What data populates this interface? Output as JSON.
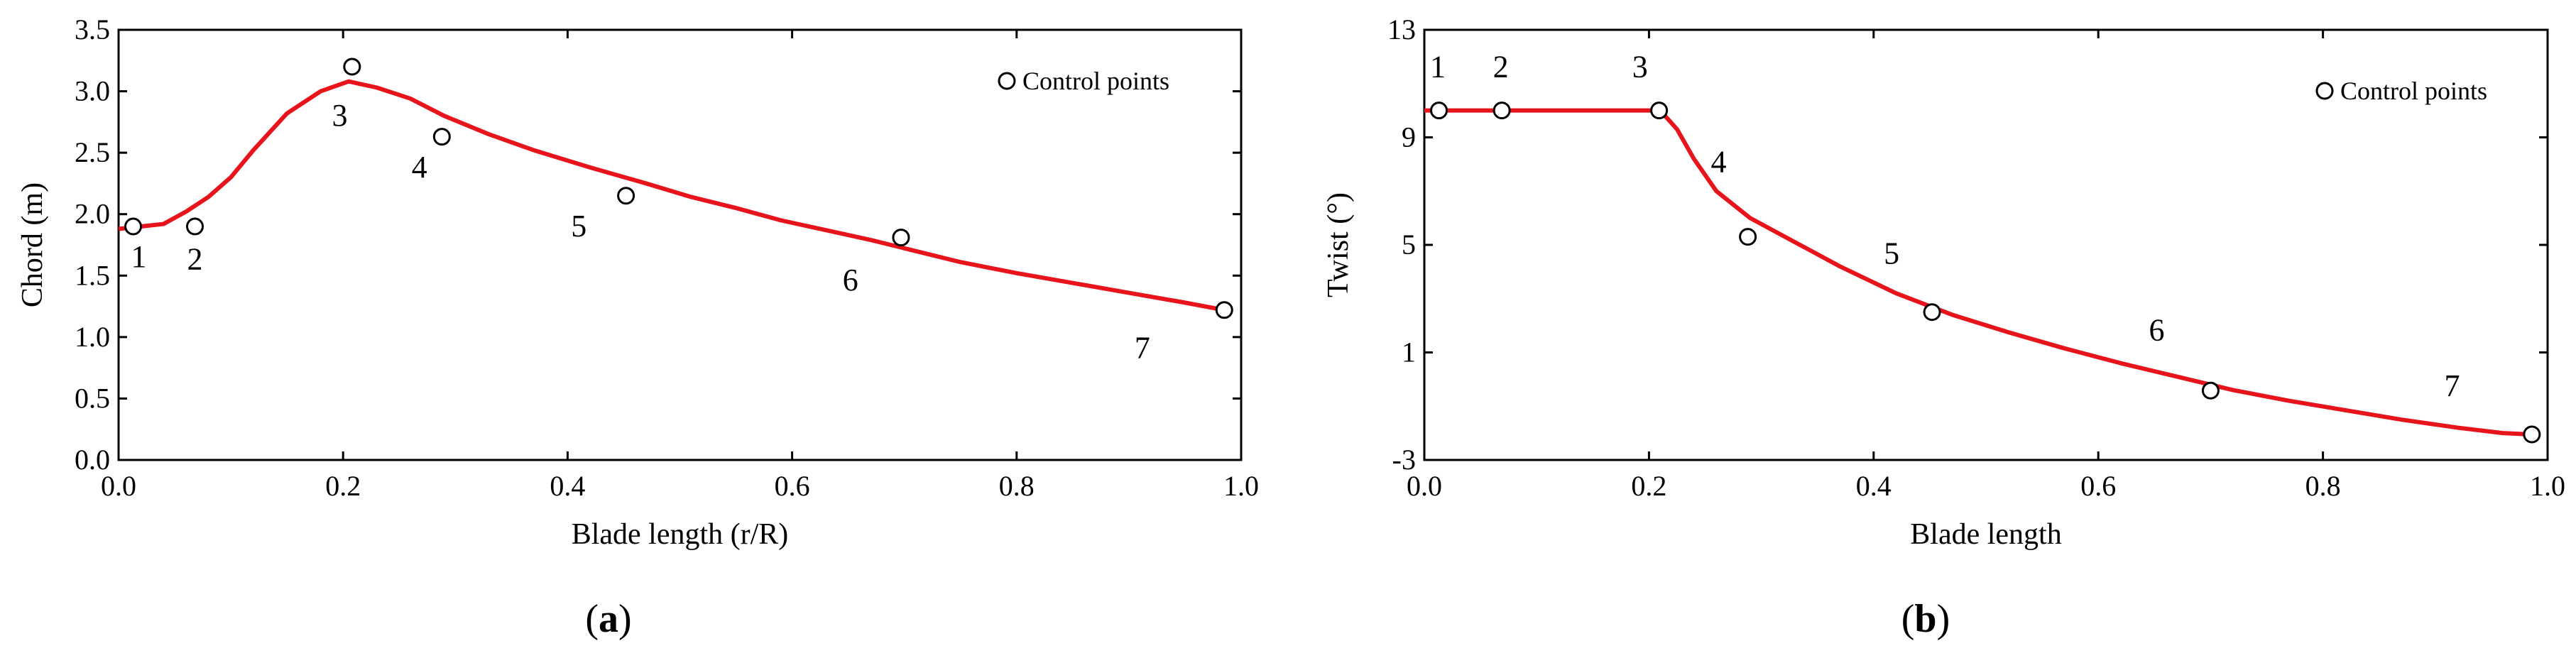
{
  "chart_data": [
    {
      "type": "line",
      "panel_label": {
        "open": "(",
        "letter": "a",
        "close": ")"
      },
      "xlabel": "Blade length (r/R)",
      "ylabel": "Chord (m)",
      "xlim": [
        0.0,
        1.0
      ],
      "ylim": [
        0.0,
        3.5
      ],
      "x_ticks": [
        "0.0",
        "0.2",
        "0.4",
        "0.6",
        "0.8",
        "1.0"
      ],
      "y_ticks": [
        "0.0",
        "0.5",
        "1.0",
        "1.5",
        "2.0",
        "2.5",
        "3.0",
        "3.5"
      ],
      "legend": {
        "label": "Control points",
        "position": "top-right"
      },
      "series": [
        {
          "kind": "curve",
          "color": "#e8141b",
          "x": [
            0.0,
            0.02,
            0.04,
            0.06,
            0.08,
            0.1,
            0.12,
            0.15,
            0.18,
            0.205,
            0.23,
            0.26,
            0.29,
            0.33,
            0.37,
            0.42,
            0.47,
            0.51,
            0.55,
            0.59,
            0.63,
            0.67,
            0.71,
            0.75,
            0.8,
            0.85,
            0.9,
            0.95,
            0.985
          ],
          "y": [
            1.88,
            1.9,
            1.92,
            2.02,
            2.14,
            2.3,
            2.52,
            2.82,
            3.0,
            3.08,
            3.03,
            2.94,
            2.8,
            2.65,
            2.52,
            2.38,
            2.25,
            2.14,
            2.05,
            1.95,
            1.87,
            1.79,
            1.7,
            1.61,
            1.52,
            1.44,
            1.36,
            1.28,
            1.22
          ]
        },
        {
          "kind": "points",
          "x": [
            0.013,
            0.068,
            0.208,
            0.288,
            0.452,
            0.697,
            0.985
          ],
          "y": [
            1.9,
            1.9,
            3.2,
            2.63,
            2.15,
            1.81,
            1.22
          ]
        }
      ],
      "point_labels": [
        {
          "text": "1",
          "x": 0.018,
          "y": 1.57
        },
        {
          "text": "2",
          "x": 0.068,
          "y": 1.55
        },
        {
          "text": "3",
          "x": 0.197,
          "y": 2.72
        },
        {
          "text": "4",
          "x": 0.268,
          "y": 2.3
        },
        {
          "text": "5",
          "x": 0.41,
          "y": 1.82
        },
        {
          "text": "6",
          "x": 0.652,
          "y": 1.38
        },
        {
          "text": "7",
          "x": 0.912,
          "y": 0.83
        }
      ]
    },
    {
      "type": "line",
      "panel_label": {
        "open": "(",
        "letter": "b",
        "close": ")"
      },
      "xlabel": "Blade length",
      "ylabel": "Twist (°)",
      "xlim": [
        0.0,
        1.0
      ],
      "ylim": [
        -3,
        13
      ],
      "x_ticks": [
        "0.0",
        "0.2",
        "0.4",
        "0.6",
        "0.8",
        "1.0"
      ],
      "y_ticks": [
        "-3",
        "1",
        "5",
        "9",
        "13"
      ],
      "legend": {
        "label": "Control points",
        "position": "top-right"
      },
      "series": [
        {
          "kind": "curve",
          "color": "#e8141b",
          "x": [
            0.0,
            0.05,
            0.1,
            0.15,
            0.21,
            0.225,
            0.24,
            0.26,
            0.29,
            0.33,
            0.37,
            0.42,
            0.47,
            0.52,
            0.57,
            0.62,
            0.67,
            0.72,
            0.77,
            0.82,
            0.87,
            0.92,
            0.96,
            0.985
          ],
          "y": [
            10.0,
            10.0,
            10.0,
            10.0,
            10.0,
            9.3,
            8.2,
            7.0,
            6.0,
            5.1,
            4.2,
            3.2,
            2.4,
            1.75,
            1.15,
            0.6,
            0.1,
            -0.4,
            -0.8,
            -1.15,
            -1.5,
            -1.8,
            -2.0,
            -2.05
          ]
        },
        {
          "kind": "points",
          "x": [
            0.013,
            0.069,
            0.209,
            0.288,
            0.452,
            0.7,
            0.986
          ],
          "y": [
            10.0,
            10.0,
            10.0,
            5.3,
            2.5,
            -0.42,
            -2.05
          ]
        }
      ],
      "point_labels": [
        {
          "text": "1",
          "x": 0.012,
          "y": 11.25
        },
        {
          "text": "2",
          "x": 0.068,
          "y": 11.25
        },
        {
          "text": "3",
          "x": 0.192,
          "y": 11.25
        },
        {
          "text": "4",
          "x": 0.262,
          "y": 7.7
        },
        {
          "text": "5",
          "x": 0.416,
          "y": 4.3
        },
        {
          "text": "6",
          "x": 0.652,
          "y": 1.45
        },
        {
          "text": "7",
          "x": 0.915,
          "y": -0.63
        }
      ]
    }
  ]
}
